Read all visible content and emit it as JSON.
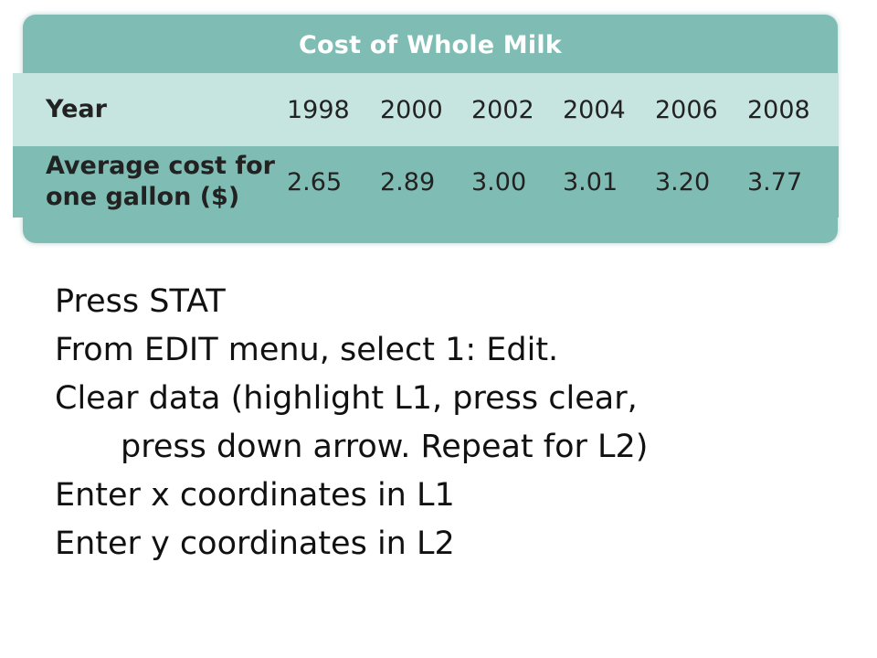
{
  "table": {
    "title": "Cost of Whole Milk",
    "row_headers": {
      "year": "Year",
      "cost_line1": "Average cost for",
      "cost_line2": "one gallon ($)"
    },
    "years": [
      "1998",
      "2000",
      "2002",
      "2004",
      "2006",
      "2008"
    ],
    "costs": [
      "2.65",
      "2.89",
      "3.00",
      "3.01",
      "3.20",
      "3.77"
    ],
    "colors": {
      "frame": "#7fbdb4",
      "band": "#c7e5e0",
      "title_text": "#ffffff"
    }
  },
  "instructions": [
    "Press STAT",
    "From EDIT menu, select 1: Edit.",
    "Clear data (highlight L1, press clear,",
    "press down arrow. Repeat for L2)",
    "Enter x coordinates in L1",
    "Enter y coordinates in L2"
  ]
}
